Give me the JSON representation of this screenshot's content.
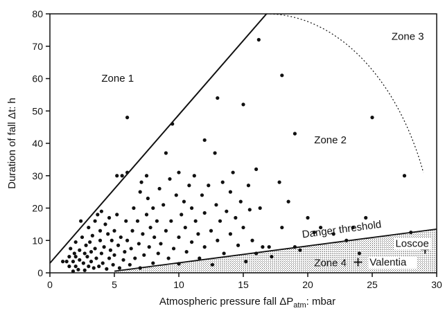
{
  "chart_data": {
    "type": "scatter",
    "xlabel": "Atmospheric pressure fall ΔP",
    "xlabel_sub": "atm",
    "xlabel_unit": ": mbar",
    "ylabel": "Duration of fall Δt: h",
    "xlim": [
      0,
      30
    ],
    "ylim": [
      0,
      80
    ],
    "xticks": [
      0,
      5,
      10,
      15,
      20,
      25,
      30
    ],
    "yticks": [
      0,
      10,
      20,
      30,
      40,
      50,
      60,
      70,
      80
    ],
    "grid": false,
    "legend": "none",
    "zones": [
      {
        "label": "Zone 1",
        "x": 4,
        "y": 59
      },
      {
        "label": "Zone 2",
        "x": 20.5,
        "y": 40
      },
      {
        "label": "Zone 3",
        "x": 26.5,
        "y": 72
      },
      {
        "label": "Zone 4",
        "x": 20.5,
        "y": 2
      }
    ],
    "boundary_line": {
      "from": [
        0,
        3
      ],
      "to": [
        16.8,
        80
      ]
    },
    "danger_threshold": {
      "label": "Danger threshold",
      "from": [
        5,
        0.5
      ],
      "to": [
        30,
        13.5
      ]
    },
    "zone3_boundary": {
      "center": [
        16.8,
        0
      ],
      "radius_x": 13.2,
      "start_y": 80,
      "end_y": 31
    },
    "stations": [
      {
        "label": "Loscoe",
        "x": 29.1,
        "y": 7.2
      },
      {
        "label": "Valentia",
        "x": 23.9,
        "y": 3.3
      }
    ],
    "points": [
      [
        1,
        3.5
      ],
      [
        1.3,
        3.5
      ],
      [
        1.5,
        5
      ],
      [
        1.5,
        2
      ],
      [
        1.6,
        7.5
      ],
      [
        1.8,
        3.5
      ],
      [
        1.8,
        0.5
      ],
      [
        1.9,
        6
      ],
      [
        2,
        9.5
      ],
      [
        2,
        5
      ],
      [
        2,
        2
      ],
      [
        2.2,
        1
      ],
      [
        2.3,
        4
      ],
      [
        2.3,
        7
      ],
      [
        2.4,
        16
      ],
      [
        2.5,
        11
      ],
      [
        2.6,
        3
      ],
      [
        2.7,
        6
      ],
      [
        2.7,
        0.8
      ],
      [
        2.8,
        8.5
      ],
      [
        2.9,
        5
      ],
      [
        3,
        14
      ],
      [
        3,
        2
      ],
      [
        3.1,
        9.5
      ],
      [
        3.2,
        3.5
      ],
      [
        3.2,
        6.5
      ],
      [
        3.3,
        11.5
      ],
      [
        3.4,
        1.5
      ],
      [
        3.5,
        7.5
      ],
      [
        3.5,
        16
      ],
      [
        3.6,
        4.5
      ],
      [
        3.7,
        18
      ],
      [
        3.8,
        2
      ],
      [
        3.9,
        10
      ],
      [
        3.9,
        13
      ],
      [
        4,
        19
      ],
      [
        4,
        6
      ],
      [
        4.1,
        3
      ],
      [
        4.2,
        8
      ],
      [
        4.3,
        15
      ],
      [
        4.4,
        1.2
      ],
      [
        4.5,
        12
      ],
      [
        4.6,
        4.5
      ],
      [
        4.6,
        17
      ],
      [
        4.7,
        7
      ],
      [
        4.8,
        10
      ],
      [
        4.9,
        2.5
      ],
      [
        5,
        13
      ],
      [
        5,
        5.5
      ],
      [
        5.2,
        18
      ],
      [
        5.2,
        30
      ],
      [
        5.3,
        8.5
      ],
      [
        5.4,
        1.5
      ],
      [
        5.5,
        11
      ],
      [
        5.6,
        30
      ],
      [
        5.7,
        4
      ],
      [
        5.8,
        6.5
      ],
      [
        5.9,
        16
      ],
      [
        6,
        31
      ],
      [
        6,
        48
      ],
      [
        6,
        10
      ],
      [
        6.2,
        2.5
      ],
      [
        6.3,
        7.5
      ],
      [
        6.4,
        13
      ],
      [
        6.5,
        20
      ],
      [
        6.6,
        4.5
      ],
      [
        6.8,
        16
      ],
      [
        6.9,
        9
      ],
      [
        7,
        25
      ],
      [
        7,
        1.5
      ],
      [
        7.1,
        28
      ],
      [
        7.2,
        12
      ],
      [
        7.3,
        5.5
      ],
      [
        7.5,
        18
      ],
      [
        7.5,
        30
      ],
      [
        7.6,
        23
      ],
      [
        7.7,
        8
      ],
      [
        7.8,
        14
      ],
      [
        8,
        20
      ],
      [
        8,
        3
      ],
      [
        8.1,
        11
      ],
      [
        8.3,
        16
      ],
      [
        8.4,
        6
      ],
      [
        8.5,
        26
      ],
      [
        8.6,
        9
      ],
      [
        8.8,
        21
      ],
      [
        9,
        37
      ],
      [
        9,
        13
      ],
      [
        9.2,
        4.5
      ],
      [
        9.3,
        29
      ],
      [
        9.4,
        16
      ],
      [
        9.5,
        46
      ],
      [
        9.6,
        7.5
      ],
      [
        9.8,
        24
      ],
      [
        10,
        11
      ],
      [
        10,
        31
      ],
      [
        10,
        2.8
      ],
      [
        10.2,
        18
      ],
      [
        10.4,
        22
      ],
      [
        10.5,
        14
      ],
      [
        10.6,
        6.5
      ],
      [
        10.8,
        27
      ],
      [
        11,
        9.5
      ],
      [
        11,
        20
      ],
      [
        11.2,
        30
      ],
      [
        11.3,
        16
      ],
      [
        11.5,
        12
      ],
      [
        11.6,
        4.5
      ],
      [
        11.8,
        24
      ],
      [
        12,
        41
      ],
      [
        12,
        18.5
      ],
      [
        12,
        8
      ],
      [
        12.3,
        27
      ],
      [
        12.5,
        13
      ],
      [
        12.6,
        2.5
      ],
      [
        12.8,
        37
      ],
      [
        12.9,
        21
      ],
      [
        13,
        54
      ],
      [
        13,
        10
      ],
      [
        13.2,
        16
      ],
      [
        13.4,
        28
      ],
      [
        13.5,
        6
      ],
      [
        13.7,
        19
      ],
      [
        14,
        25
      ],
      [
        14,
        12
      ],
      [
        14.2,
        31
      ],
      [
        14.4,
        17
      ],
      [
        14.6,
        8.5
      ],
      [
        14.8,
        22
      ],
      [
        15,
        52
      ],
      [
        15,
        14
      ],
      [
        15.2,
        3.5
      ],
      [
        15.4,
        27
      ],
      [
        15.5,
        19.5
      ],
      [
        15.7,
        10
      ],
      [
        16,
        32
      ],
      [
        16,
        6
      ],
      [
        16.2,
        72
      ],
      [
        16.3,
        20
      ],
      [
        16.5,
        8
      ],
      [
        17,
        8
      ],
      [
        17.2,
        5
      ],
      [
        17.8,
        28
      ],
      [
        18,
        61
      ],
      [
        18,
        14
      ],
      [
        18.5,
        22
      ],
      [
        19,
        43
      ],
      [
        19,
        8
      ],
      [
        19.4,
        7
      ],
      [
        20,
        17
      ],
      [
        20.5,
        12.5
      ],
      [
        21,
        14
      ],
      [
        22,
        12
      ],
      [
        23,
        10
      ],
      [
        23.5,
        14
      ],
      [
        24,
        6
      ],
      [
        24.5,
        17
      ],
      [
        25,
        48
      ],
      [
        27.5,
        30
      ],
      [
        28,
        12.5
      ]
    ]
  }
}
